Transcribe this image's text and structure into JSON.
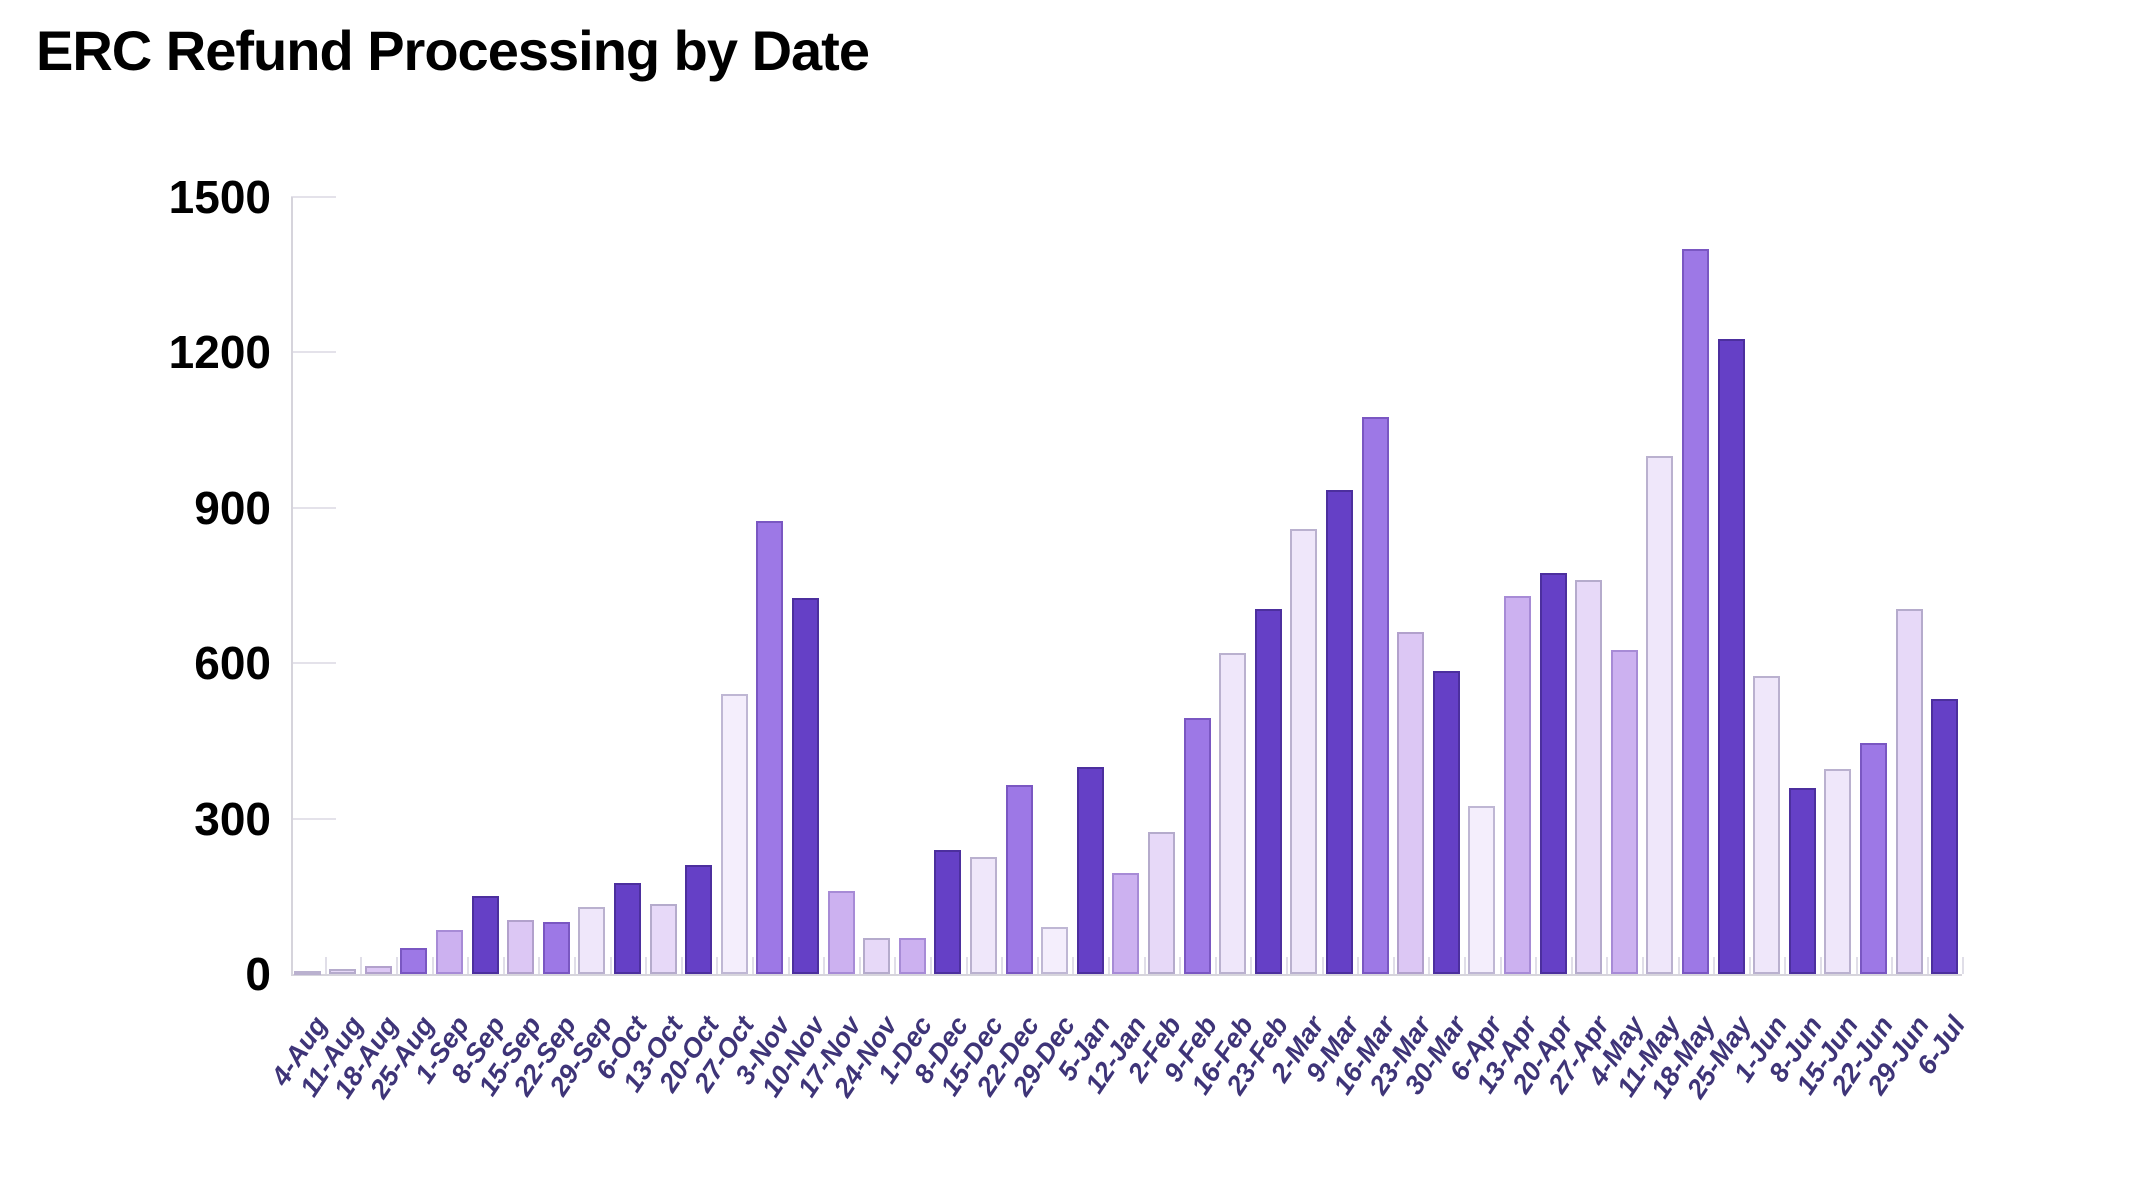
{
  "page": {
    "background": "#ffffff"
  },
  "chart_data": {
    "type": "bar",
    "title": "ERC Refund Processing by Date",
    "xlabel": "",
    "ylabel": "",
    "legend": "none",
    "grid": "off",
    "ylim": [
      0,
      1500
    ],
    "y_ticks": [
      0,
      300,
      600,
      900,
      1200,
      1500
    ],
    "categories": [
      "4-Aug",
      "11-Aug",
      "18-Aug",
      "25-Aug",
      "1-Sep",
      "8-Sep",
      "15-Sep",
      "22-Sep",
      "29-Sep",
      "6-Oct",
      "13-Oct",
      "20-Oct",
      "27-Oct",
      "3-Nov",
      "10-Nov",
      "17-Nov",
      "24-Nov",
      "1-Dec",
      "8-Dec",
      "15-Dec",
      "22-Dec",
      "29-Dec",
      "5-Jan",
      "12-Jan",
      "2-Feb",
      "9-Feb",
      "16-Feb",
      "23-Feb",
      "2-Mar",
      "9-Mar",
      "16-Mar",
      "23-Mar",
      "30-Mar",
      "6-Apr",
      "13-Apr",
      "20-Apr",
      "27-Apr",
      "4-May",
      "11-May",
      "18-May",
      "25-May",
      "1-Jun",
      "8-Jun",
      "15-Jun",
      "22-Jun",
      "29-Jun",
      "6-Jul"
    ],
    "values": [
      5,
      10,
      15,
      50,
      85,
      150,
      105,
      100,
      130,
      175,
      135,
      210,
      540,
      875,
      725,
      160,
      70,
      70,
      240,
      225,
      365,
      90,
      400,
      195,
      275,
      495,
      620,
      705,
      860,
      935,
      1075,
      660,
      585,
      325,
      730,
      775,
      760,
      625,
      1000,
      1400,
      1225,
      575,
      360,
      395,
      445,
      705,
      530
    ],
    "bar_tones": [
      "vl",
      "ll",
      "l",
      "medium",
      "lm",
      "dark",
      "l",
      "medium",
      "vl",
      "dark",
      "ll",
      "dark",
      "faint",
      "medium",
      "dark",
      "lm",
      "ll",
      "lm",
      "dark",
      "vl",
      "medium",
      "faint",
      "dark",
      "lm",
      "ll",
      "medium",
      "vl",
      "dark",
      "vl",
      "dark",
      "medium",
      "l",
      "dark",
      "faint",
      "lm",
      "dark",
      "ll",
      "lm",
      "vl",
      "medium",
      "dark",
      "vl",
      "dark",
      "vl",
      "medium",
      "ll",
      "dark"
    ],
    "palette": {
      "dark": {
        "fill": "#6540c6",
        "border": "#4c2f9e"
      },
      "medium": {
        "fill": "#9d78e6",
        "border": "#7a57c2"
      },
      "lm": {
        "fill": "#ccb1f0",
        "border": "#a78bd6"
      },
      "l": {
        "fill": "#dcc7f4",
        "border": "#b2a1cc"
      },
      "ll": {
        "fill": "#e7d9f8",
        "border": "#b5abcc"
      },
      "vl": {
        "fill": "#efe7fa",
        "border": "#bab1cf"
      },
      "faint": {
        "fill": "#f4eefc",
        "border": "#bfb7d4"
      }
    },
    "title_color": "#000000",
    "y_label_color": "#000000",
    "x_label_color": "#3e3478",
    "axis_color": "#d6d4dc"
  }
}
